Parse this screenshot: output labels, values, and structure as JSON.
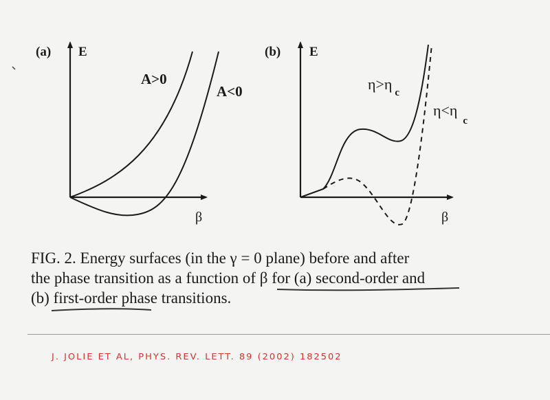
{
  "panel_a": {
    "label": "(a)",
    "y_axis": "E",
    "x_axis": "β",
    "curves": [
      {
        "label": "A>0",
        "style": "solid"
      },
      {
        "label": "A<0",
        "style": "solid"
      }
    ]
  },
  "panel_b": {
    "label": "(b)",
    "y_axis": "E",
    "x_axis": "β",
    "curves": [
      {
        "label": "η>η",
        "subscript": "c",
        "style": "solid"
      },
      {
        "label": "η<η",
        "subscript": "c",
        "style": "dashed"
      }
    ]
  },
  "caption": {
    "line1": "FIG. 2.   Energy surfaces (in the γ = 0 plane) before and after",
    "line2_pre": "the phase transition as a function of β for (a) ",
    "line2_ul": "second-order",
    "line2_post": " and",
    "line3_pre": "(b) ",
    "line3_ul": "first-order phase",
    "line3_post": " transitions."
  },
  "handwritten_note": "J. JOLIE ET AL, PHYS. REV. LETT. 89 (2002) 182502",
  "colors": {
    "ink": "#1a1a1a",
    "note": "#d8322a",
    "paper": "#f4f4f2"
  }
}
